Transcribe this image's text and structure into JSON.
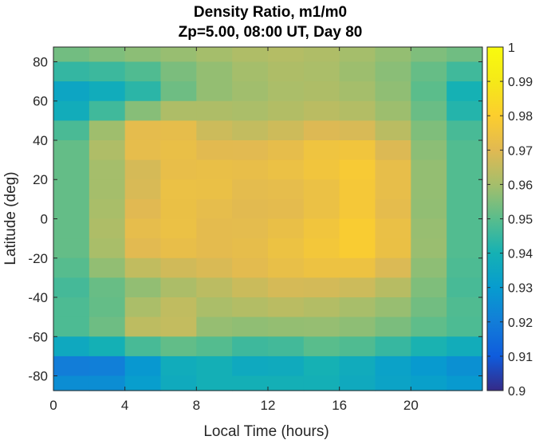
{
  "chart_data": {
    "type": "heatmap",
    "title": "Density Ratio, m1/m0",
    "subtitle": "Zp=5.00, 08:00 UT, Day 80",
    "xlabel": "Local Time (hours)",
    "ylabel": "Latitude (deg)",
    "xlim": [
      0,
      24
    ],
    "ylim": [
      -87.5,
      87.5
    ],
    "xticks": [
      0,
      4,
      8,
      12,
      16,
      20
    ],
    "yticks": [
      -80,
      -60,
      -40,
      -20,
      0,
      20,
      40,
      60,
      80
    ],
    "colorbar": {
      "colormap": "parula",
      "clim": [
        0.9,
        1.0
      ],
      "ticks": [
        "0.9",
        "0.91",
        "0.92",
        "0.93",
        "0.94",
        "0.95",
        "0.96",
        "0.97",
        "0.98",
        "0.99",
        "1"
      ]
    },
    "x": [
      0,
      2,
      4,
      6,
      8,
      10,
      12,
      14,
      16,
      18,
      20,
      22,
      24
    ],
    "y": [
      87.5,
      80,
      70,
      60,
      50,
      40,
      30,
      20,
      10,
      0,
      -10,
      -20,
      -30,
      -40,
      -50,
      -60,
      -70,
      -80,
      -87.5
    ],
    "z": [
      [
        0.955,
        0.955,
        0.957,
        0.958,
        0.96,
        0.962,
        0.963,
        0.963,
        0.962,
        0.96,
        0.958,
        0.955,
        0.955
      ],
      [
        0.95,
        0.953,
        0.955,
        0.957,
        0.958,
        0.96,
        0.962,
        0.962,
        0.96,
        0.958,
        0.955,
        0.952,
        0.95
      ],
      [
        0.935,
        0.94,
        0.935,
        0.948,
        0.955,
        0.958,
        0.96,
        0.962,
        0.96,
        0.958,
        0.955,
        0.945,
        0.938
      ],
      [
        0.928,
        0.935,
        0.94,
        0.95,
        0.958,
        0.96,
        0.96,
        0.962,
        0.962,
        0.96,
        0.956,
        0.945,
        0.932
      ],
      [
        0.94,
        0.948,
        0.962,
        0.972,
        0.966,
        0.962,
        0.962,
        0.965,
        0.965,
        0.962,
        0.958,
        0.95,
        0.942
      ],
      [
        0.948,
        0.955,
        0.972,
        0.98,
        0.97,
        0.968,
        0.968,
        0.972,
        0.975,
        0.972,
        0.962,
        0.95,
        0.948
      ],
      [
        0.948,
        0.955,
        0.965,
        0.97,
        0.972,
        0.972,
        0.973,
        0.975,
        0.978,
        0.978,
        0.965,
        0.95,
        0.948
      ],
      [
        0.948,
        0.955,
        0.965,
        0.972,
        0.976,
        0.972,
        0.973,
        0.974,
        0.976,
        0.98,
        0.966,
        0.95,
        0.948
      ],
      [
        0.948,
        0.955,
        0.965,
        0.972,
        0.975,
        0.97,
        0.97,
        0.97,
        0.975,
        0.978,
        0.965,
        0.95,
        0.948
      ],
      [
        0.948,
        0.955,
        0.968,
        0.975,
        0.972,
        0.97,
        0.972,
        0.972,
        0.978,
        0.978,
        0.965,
        0.95,
        0.948
      ],
      [
        0.948,
        0.955,
        0.968,
        0.976,
        0.972,
        0.97,
        0.973,
        0.975,
        0.978,
        0.982,
        0.968,
        0.95,
        0.948
      ],
      [
        0.948,
        0.955,
        0.965,
        0.972,
        0.97,
        0.972,
        0.973,
        0.976,
        0.978,
        0.978,
        0.966,
        0.95,
        0.948
      ],
      [
        0.945,
        0.95,
        0.96,
        0.962,
        0.965,
        0.968,
        0.97,
        0.972,
        0.972,
        0.97,
        0.962,
        0.95,
        0.945
      ],
      [
        0.945,
        0.948,
        0.95,
        0.958,
        0.96,
        0.962,
        0.965,
        0.965,
        0.962,
        0.962,
        0.958,
        0.95,
        0.945
      ],
      [
        0.95,
        0.95,
        0.958,
        0.978,
        0.962,
        0.96,
        0.962,
        0.962,
        0.96,
        0.958,
        0.955,
        0.95,
        0.95
      ],
      [
        0.945,
        0.948,
        0.955,
        0.965,
        0.955,
        0.955,
        0.952,
        0.955,
        0.955,
        0.955,
        0.95,
        0.948,
        0.945
      ],
      [
        0.925,
        0.925,
        0.93,
        0.94,
        0.945,
        0.942,
        0.935,
        0.945,
        0.945,
        0.94,
        0.935,
        0.93,
        0.928
      ],
      [
        0.918,
        0.912,
        0.915,
        0.93,
        0.935,
        0.935,
        0.932,
        0.935,
        0.935,
        0.928,
        0.928,
        0.925,
        0.922
      ],
      [
        0.935,
        0.935,
        0.938,
        0.94,
        0.942,
        0.945,
        0.945,
        0.945,
        0.942,
        0.94,
        0.938,
        0.936,
        0.935
      ]
    ]
  }
}
